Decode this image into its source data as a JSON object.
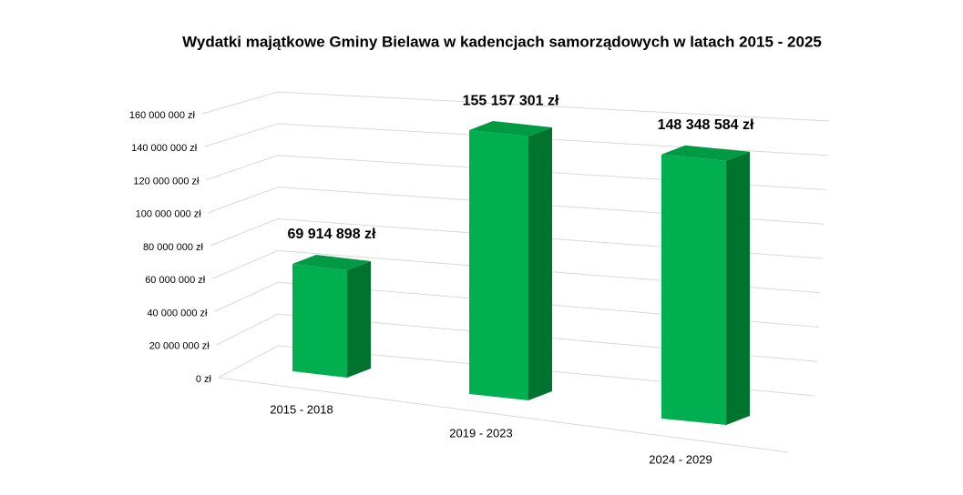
{
  "chart_data": {
    "type": "bar3d",
    "title": "Wydatki majątkowe Gminy Bielawa w kadencjach samorządowych w latach 2015 - 2025",
    "categories": [
      "2015 - 2018",
      "2019 - 2023",
      "2024 - 2029"
    ],
    "values": [
      69914898,
      155157301,
      148348584
    ],
    "value_labels": [
      "69 914 898 zł",
      "155 157 301 zł",
      "148 348 584 zł"
    ],
    "color": "#00b050",
    "ylim": [
      0,
      160000000
    ],
    "yticks": [
      {
        "value": 0,
        "label": "0 zł"
      },
      {
        "value": 20000000,
        "label": "20 000 000 zł"
      },
      {
        "value": 40000000,
        "label": "40 000 000 zł"
      },
      {
        "value": 60000000,
        "label": "60 000 000 zł"
      },
      {
        "value": 80000000,
        "label": "80 000 000 zł"
      },
      {
        "value": 100000000,
        "label": "100 000 000 zł"
      },
      {
        "value": 120000000,
        "label": "120 000 000 zł"
      },
      {
        "value": 140000000,
        "label": "140 000 000 zł"
      },
      {
        "value": 160000000,
        "label": "160 000 000 zł"
      }
    ],
    "grid": true
  }
}
